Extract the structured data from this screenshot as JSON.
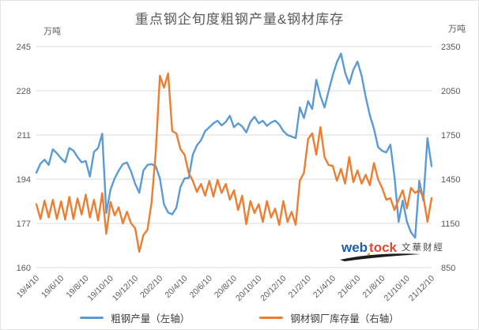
{
  "title": "重点钢企旬度粗钢产量&钢材库存",
  "unit_left": "万吨",
  "unit_right": "万吨",
  "watermark": {
    "web": "web",
    "tock": "tock",
    "brand_cn": "文華财經"
  },
  "colors": {
    "production_blue": "#5B9BD5",
    "inventory_orange": "#ED7D31",
    "grid": "#D9D9D9",
    "axis_text": "#595959",
    "title_text": "#595959"
  },
  "chart_data": {
    "type": "line",
    "title": "重点钢企旬度粗钢产量&钢材库存",
    "x_tick_labels": [
      "19/4/10",
      "19/6/10",
      "19/8/10",
      "19/10/10",
      "19/12/10",
      "20/2/10",
      "20/4/10",
      "20/6/10",
      "20/8/10",
      "20/10/10",
      "20/12/10",
      "21/2/10",
      "21/4/10",
      "21/6/10",
      "21/8/10",
      "21/10/10",
      "21/12/10"
    ],
    "x_tick_every": 6,
    "grid": "horizontal",
    "legend_position": "bottom",
    "left_axis": {
      "unit": "万吨",
      "range": [
        160,
        245
      ],
      "ticks": [
        245,
        228,
        211,
        194,
        177,
        160
      ]
    },
    "right_axis": {
      "unit": "万吨",
      "range": [
        850,
        2350
      ],
      "ticks": [
        2350,
        2050,
        1750,
        1450,
        1150,
        850
      ]
    },
    "series": [
      {
        "name": "粗钢产量（左轴）",
        "axis": "left",
        "color": "#5B9BD5",
        "values": [
          196.5,
          200,
          201.5,
          199.5,
          205.5,
          204,
          202,
          200.5,
          206,
          205,
          202.5,
          200.5,
          201,
          195,
          204.5,
          206,
          211.5,
          181,
          190,
          194.3,
          197.3,
          199.8,
          200.4,
          197,
          192.2,
          188.8,
          197.3,
          199.5,
          199.8,
          199,
          194.3,
          184.3,
          181.2,
          180.5,
          183,
          191,
          194.3,
          194.5,
          203.4,
          207,
          209,
          212.5,
          214,
          215.5,
          216.5,
          214.7,
          216,
          218.4,
          214,
          215.5,
          214.3,
          212,
          216,
          218,
          215.5,
          216.5,
          214.5,
          215.8,
          216.5,
          215,
          212.5,
          211,
          210.4,
          209.8,
          221.6,
          217.5,
          224,
          221,
          232.2,
          226,
          221.6,
          228,
          234,
          239,
          242.3,
          235,
          230.7,
          236,
          239.2,
          233.8,
          225.6,
          218.6,
          213.4,
          206.4,
          204.9,
          204.3,
          207.3,
          194.9,
          177.6,
          185.8,
          177.6,
          173.6,
          171.5,
          193.4,
          185.8,
          209.8,
          199
        ]
      },
      {
        "name": "钢材钢厂库存量（右轴）",
        "axis": "right",
        "color": "#ED7D31",
        "values": [
          1280,
          1180,
          1305,
          1190,
          1310,
          1180,
          1300,
          1175,
          1330,
          1180,
          1320,
          1210,
          1345,
          1190,
          1310,
          1170,
          1355,
          1080,
          1295,
          1204,
          1260,
          1150,
          1230,
          1150,
          1118,
          957,
          1070,
          1107,
          1295,
          1632,
          2152,
          2071,
          2168,
          1777,
          1760,
          1654,
          1616,
          1493,
          1439,
          1364,
          1418,
          1338,
          1439,
          1332,
          1445,
          1357,
          1418,
          1311,
          1375,
          1241,
          1338,
          1145,
          1302,
          1220,
          1280,
          1160,
          1302,
          1190,
          1250,
          1140,
          1302,
          1160,
          1229,
          1141,
          1439,
          1493,
          1723,
          1761,
          1616,
          1804,
          1600,
          1546,
          1540,
          1440,
          1520,
          1420,
          1600,
          1430,
          1510,
          1420,
          1480,
          1410,
          1560,
          1450,
          1390,
          1311,
          1321,
          1241,
          1310,
          1375,
          1252,
          1391,
          1357,
          1375,
          1332,
          1161,
          1321
        ]
      }
    ]
  }
}
